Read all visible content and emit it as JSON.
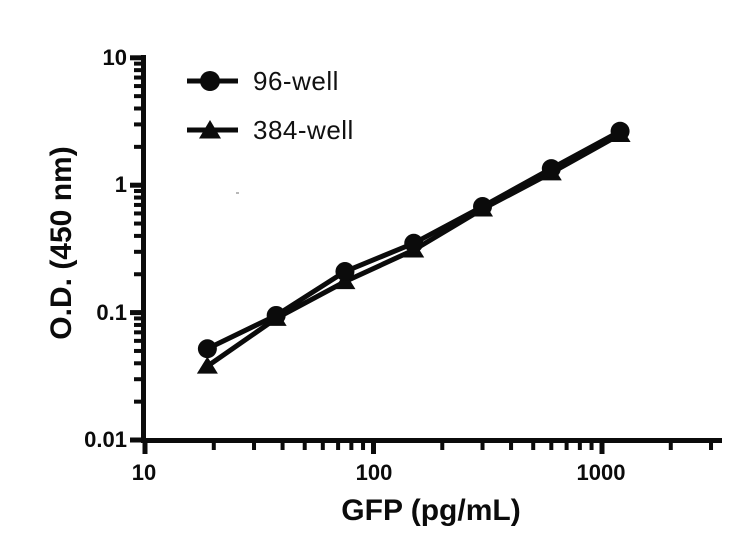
{
  "figure": {
    "background_color": "#ffffff",
    "ink_color": "#0b0b0b"
  },
  "chart_data": {
    "type": "line",
    "title": "",
    "xlabel": "GFP (pg/mL)",
    "ylabel": "O.D. (450 nm)",
    "x_scale": "log",
    "y_scale": "log",
    "xlim": [
      10,
      3360
    ],
    "ylim": [
      0.01,
      10
    ],
    "grid": false,
    "legend_position": "top-left-inside",
    "x_ticks": [
      {
        "value": 10,
        "label": "10"
      },
      {
        "value": 100,
        "label": "100"
      },
      {
        "value": 1000,
        "label": "1000"
      }
    ],
    "y_ticks": [
      {
        "value": 10,
        "label": "10"
      },
      {
        "value": 1,
        "label": "1"
      },
      {
        "value": 0.1,
        "label": "0.1"
      },
      {
        "value": 0.01,
        "label": "0.01"
      }
    ],
    "series": [
      {
        "name": "96-well",
        "marker": "circle",
        "color": "#0b0b0b",
        "x": [
          18.75,
          37.5,
          75,
          150,
          300,
          600,
          1200
        ],
        "y": [
          0.052,
          0.095,
          0.21,
          0.35,
          0.68,
          1.35,
          2.65
        ]
      },
      {
        "name": "384-well",
        "marker": "triangle",
        "color": "#0b0b0b",
        "x": [
          18.75,
          37.5,
          75,
          150,
          300,
          600,
          1200
        ],
        "y": [
          0.038,
          0.09,
          0.175,
          0.31,
          0.65,
          1.25,
          2.5
        ]
      }
    ]
  }
}
